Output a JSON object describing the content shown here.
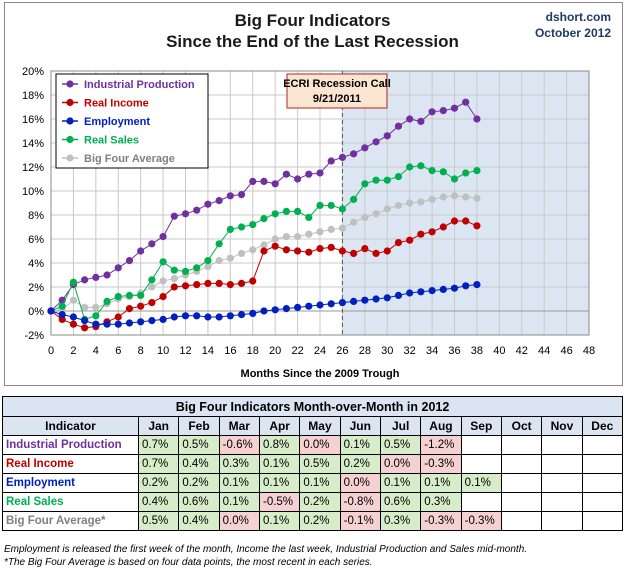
{
  "header": {
    "title_line1": "Big Four Indicators",
    "title_line2": "Since the End of the Last Recession",
    "source": "dshort.com",
    "date": "October 2012"
  },
  "chart_data": {
    "type": "line",
    "xlabel": "Months Since the 2009 Trough",
    "ylabel": "",
    "xlim": [
      0,
      48
    ],
    "ylim": [
      -2,
      20
    ],
    "x_ticks": [
      "0",
      "2",
      "4",
      "6",
      "8",
      "10",
      "12",
      "14",
      "16",
      "18",
      "20",
      "22",
      "24",
      "26",
      "28",
      "30",
      "32",
      "34",
      "36",
      "38",
      "40",
      "42",
      "44",
      "46",
      "48"
    ],
    "y_ticks": [
      "-2%",
      "0%",
      "2%",
      "4%",
      "6%",
      "8%",
      "10%",
      "12%",
      "14%",
      "16%",
      "18%",
      "20%"
    ],
    "grid": true,
    "legend_position": "top-left",
    "shaded_region": {
      "x_start": 26,
      "x_end": 48,
      "color": "#dbe6f2"
    },
    "annotation": {
      "line1": "ECRI Recession Call",
      "line2": "9/21/2011",
      "x": 26
    },
    "x": [
      0,
      1,
      2,
      3,
      4,
      5,
      6,
      7,
      8,
      9,
      10,
      11,
      12,
      13,
      14,
      15,
      16,
      17,
      18,
      19,
      20,
      21,
      22,
      23,
      24,
      25,
      26,
      27,
      28,
      29,
      30,
      31,
      32,
      33,
      34,
      35,
      36,
      37,
      38
    ],
    "series": [
      {
        "name": "Industrial Production",
        "color": "#7030a0",
        "values": [
          0,
          0.9,
          2.2,
          2.6,
          2.8,
          3.0,
          3.6,
          4.2,
          5.0,
          5.6,
          6.2,
          7.9,
          8.1,
          8.4,
          8.9,
          9.2,
          9.6,
          9.7,
          10.8,
          10.8,
          10.6,
          11.4,
          11.0,
          11.4,
          11.5,
          12.5,
          12.8,
          13.1,
          13.6,
          14.1,
          14.6,
          15.4,
          16.0,
          15.8,
          16.6,
          16.7,
          16.9,
          17.4,
          16.0
        ]
      },
      {
        "name": "Real Income",
        "color": "#c00000",
        "values": [
          0,
          -0.7,
          -1.1,
          -1.4,
          -1.3,
          -0.9,
          -0.5,
          0.2,
          0.4,
          0.7,
          1.2,
          2.0,
          2.1,
          2.2,
          2.3,
          2.3,
          2.2,
          2.3,
          2.5,
          5.0,
          5.4,
          5.1,
          5.0,
          4.9,
          5.2,
          5.3,
          5.0,
          4.8,
          5.2,
          4.8,
          5.0,
          5.7,
          5.9,
          6.4,
          6.6,
          7.0,
          7.5,
          7.5,
          7.1
        ]
      },
      {
        "name": "Employment",
        "color": "#0020c0",
        "values": [
          0,
          -0.3,
          -0.5,
          -0.8,
          -1.1,
          -1.1,
          -1.1,
          -1.0,
          -0.9,
          -0.8,
          -0.7,
          -0.5,
          -0.4,
          -0.4,
          -0.5,
          -0.5,
          -0.4,
          -0.3,
          -0.2,
          0.0,
          0.1,
          0.2,
          0.3,
          0.4,
          0.5,
          0.6,
          0.7,
          0.8,
          0.9,
          1.0,
          1.1,
          1.3,
          1.5,
          1.6,
          1.7,
          1.8,
          1.9,
          2.1,
          2.2
        ]
      },
      {
        "name": "Real Sales",
        "color": "#00b050",
        "values": [
          0,
          0.4,
          2.4,
          -0.7,
          -0.4,
          0.8,
          1.2,
          1.3,
          1.3,
          2.6,
          4.1,
          3.4,
          3.3,
          3.6,
          4.2,
          5.6,
          6.8,
          7.0,
          7.2,
          7.7,
          8.1,
          8.3,
          8.3,
          7.8,
          8.8,
          8.8,
          8.5,
          9.3,
          10.6,
          10.9,
          10.9,
          11.2,
          12.0,
          12.1,
          11.7,
          11.6,
          11.0,
          11.5,
          11.7
        ]
      },
      {
        "name": "Big Four Average",
        "color": "#c0c0c0",
        "values": [
          0,
          0.1,
          0.9,
          0.3,
          0.3,
          0.6,
          1.0,
          1.2,
          1.5,
          2.0,
          2.5,
          2.7,
          3.0,
          3.3,
          3.7,
          4.2,
          4.4,
          4.8,
          5.1,
          5.5,
          6.0,
          6.2,
          6.2,
          6.4,
          6.6,
          6.8,
          6.9,
          7.4,
          7.8,
          8.1,
          8.5,
          8.8,
          9.0,
          9.1,
          9.3,
          9.5,
          9.6,
          9.5,
          9.4
        ]
      }
    ]
  },
  "table": {
    "title": "Big Four Indicators Month-over-Month in 2012",
    "headers": [
      "Indicator",
      "Jan",
      "Feb",
      "Mar",
      "Apr",
      "May",
      "Jun",
      "Jul",
      "Aug",
      "Sep",
      "Oct",
      "Nov",
      "Dec"
    ],
    "rows": [
      {
        "name": "Industrial Production",
        "color": "#7030a0",
        "values": [
          "0.7%",
          "0.5%",
          "-0.6%",
          "0.8%",
          "0.0%",
          "0.1%",
          "0.5%",
          "-1.2%",
          "",
          "",
          "",
          ""
        ]
      },
      {
        "name": "Real Income",
        "color": "#c00000",
        "values": [
          "0.7%",
          "0.4%",
          "0.3%",
          "0.1%",
          "0.5%",
          "0.2%",
          "0.0%",
          "-0.3%",
          "",
          "",
          "",
          ""
        ]
      },
      {
        "name": "Employment",
        "color": "#0020c0",
        "values": [
          "0.2%",
          "0.2%",
          "0.1%",
          "0.1%",
          "0.1%",
          "0.0%",
          "0.1%",
          "0.1%",
          "0.1%",
          "",
          "",
          ""
        ]
      },
      {
        "name": "Real Sales",
        "color": "#00b050",
        "values": [
          "0.4%",
          "0.6%",
          "0.1%",
          "-0.5%",
          "0.2%",
          "-0.8%",
          "0.6%",
          "0.3%",
          "",
          "",
          "",
          ""
        ]
      },
      {
        "name": "Big Four Average*",
        "color": "#7f7f7f",
        "values": [
          "0.5%",
          "0.4%",
          "0.0%",
          "0.1%",
          "0.2%",
          "-0.1%",
          "0.3%",
          "-0.3%",
          "-0.3%",
          "",
          "",
          ""
        ]
      }
    ],
    "cell_colors": {
      "positive": "#d7ecc9",
      "negative_or_zero": "#f6d1d1"
    }
  },
  "notes": {
    "line1": "Employment is released the first week of the month, Income the last week, Industrial Production and Sales mid-month.",
    "line2": "*The Big Four Average is based on four data points, the most recent in each series."
  }
}
